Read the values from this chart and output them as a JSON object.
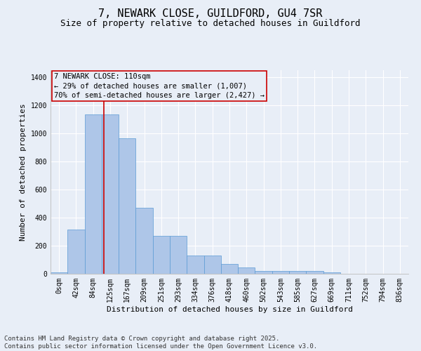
{
  "title": "7, NEWARK CLOSE, GUILDFORD, GU4 7SR",
  "subtitle": "Size of property relative to detached houses in Guildford",
  "xlabel": "Distribution of detached houses by size in Guildford",
  "ylabel": "Number of detached properties",
  "categories": [
    "0sqm",
    "42sqm",
    "84sqm",
    "125sqm",
    "167sqm",
    "209sqm",
    "251sqm",
    "293sqm",
    "334sqm",
    "376sqm",
    "418sqm",
    "460sqm",
    "502sqm",
    "543sqm",
    "585sqm",
    "627sqm",
    "669sqm",
    "711sqm",
    "752sqm",
    "794sqm",
    "836sqm"
  ],
  "values": [
    8,
    315,
    1135,
    1135,
    963,
    470,
    270,
    270,
    130,
    130,
    70,
    47,
    20,
    20,
    20,
    20,
    8,
    0,
    0,
    0,
    0
  ],
  "bar_color": "#aec6e8",
  "bar_edge_color": "#5b9bd5",
  "vline_color": "#cc0000",
  "vline_pos": 2.63,
  "annotation_text": "7 NEWARK CLOSE: 110sqm\n← 29% of detached houses are smaller (1,007)\n70% of semi-detached houses are larger (2,427) →",
  "annotation_box_color": "#cc0000",
  "ylim": [
    0,
    1450
  ],
  "yticks": [
    0,
    200,
    400,
    600,
    800,
    1000,
    1200,
    1400
  ],
  "background_color": "#e8eef7",
  "grid_color": "#ffffff",
  "footer": "Contains HM Land Registry data © Crown copyright and database right 2025.\nContains public sector information licensed under the Open Government Licence v3.0.",
  "title_fontsize": 11,
  "subtitle_fontsize": 9,
  "ylabel_fontsize": 8,
  "xlabel_fontsize": 8,
  "tick_fontsize": 7,
  "annotation_fontsize": 7.5,
  "footer_fontsize": 6.5
}
